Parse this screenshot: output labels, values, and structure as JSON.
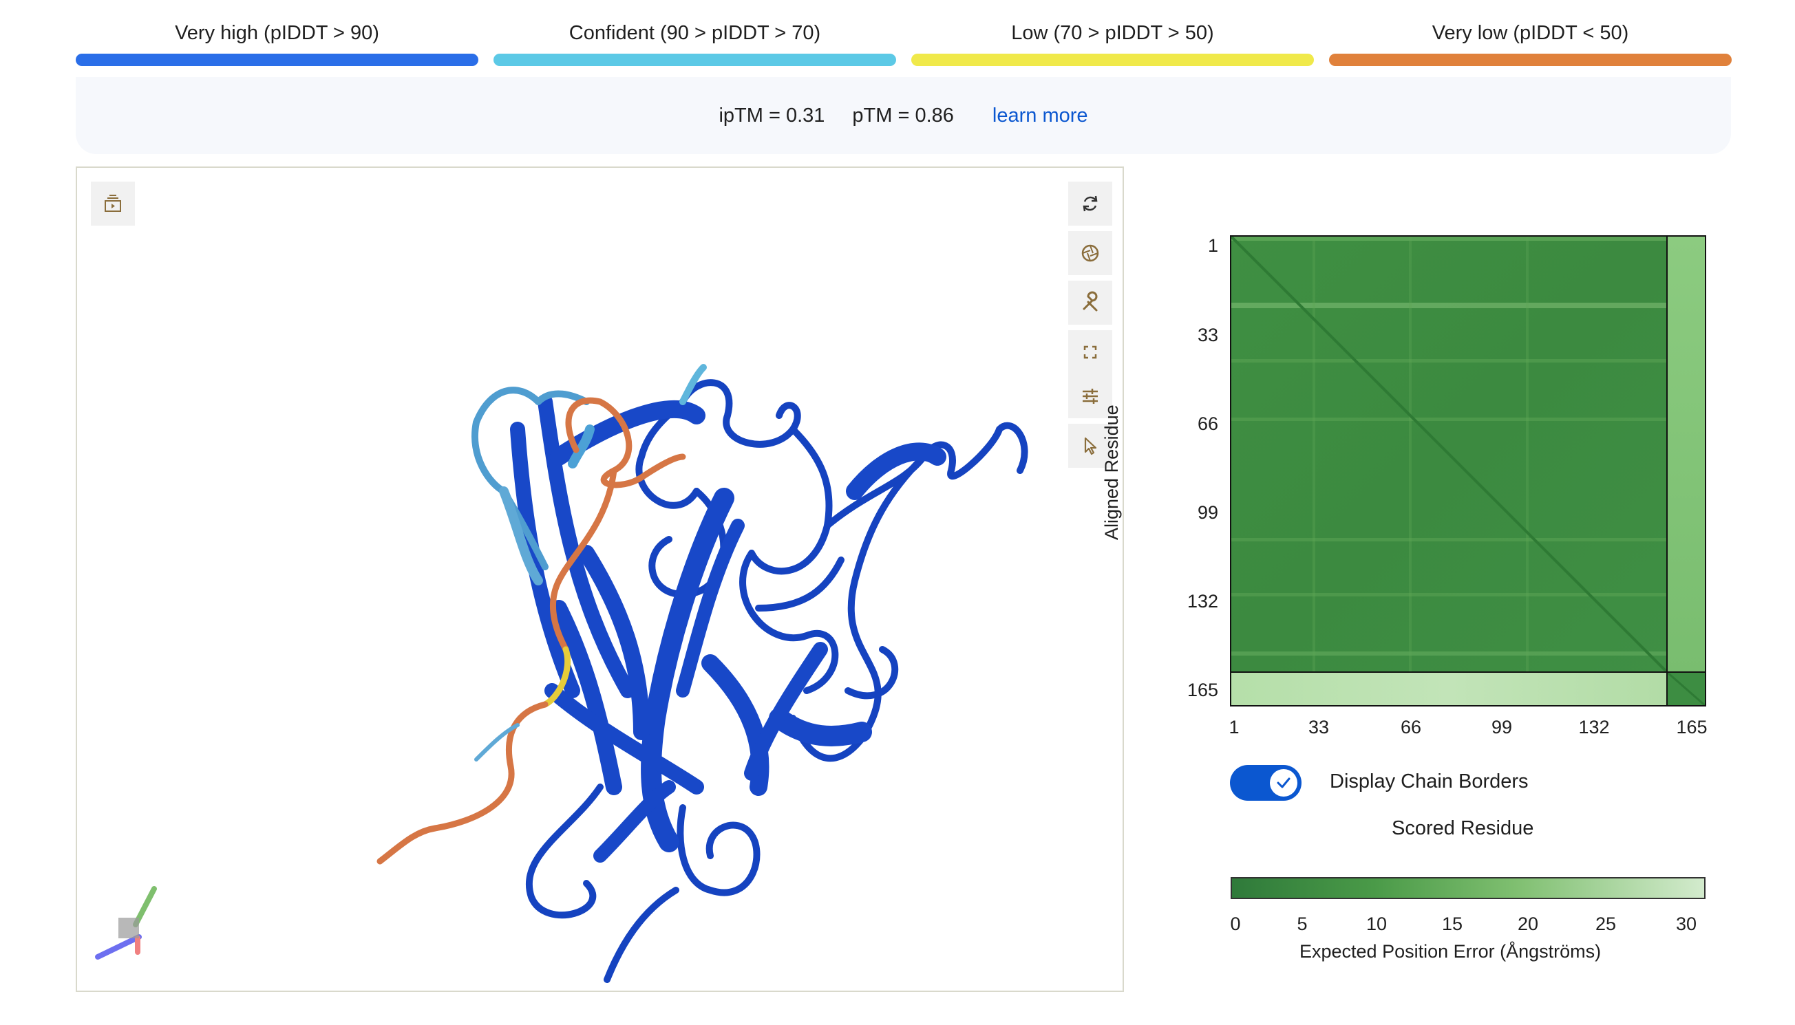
{
  "legend": [
    {
      "label": "Very high (pIDDT > 90)",
      "color": "#2a6ee8"
    },
    {
      "label": "Confident (90 > pIDDT > 70)",
      "color": "#5cc9e6"
    },
    {
      "label": "Low (70 > pIDDT > 50)",
      "color": "#f0e94a"
    },
    {
      "label": "Very low (pIDDT < 50)",
      "color": "#e0813b"
    }
  ],
  "scores": {
    "iptm": "ipTM = 0.31",
    "ptm": "pTM = 0.86",
    "learn_more": "learn more"
  },
  "viewer": {
    "toolbar_left": [
      {
        "icon": "animation-icon"
      }
    ],
    "toolbar_right": [
      {
        "icon": "rotate-icon"
      },
      {
        "icon": "camera-shutter-icon"
      },
      {
        "icon": "wrench-icon"
      },
      {
        "icon": "fullscreen-icon"
      },
      {
        "icon": "sliders-icon"
      },
      {
        "icon": "pointer-icon"
      }
    ]
  },
  "pae": {
    "y_axis_label": "Aligned Residue",
    "y_ticks": [
      "1",
      "33",
      "66",
      "99",
      "132",
      "165"
    ],
    "x_ticks": [
      "1",
      "33",
      "66",
      "99",
      "132",
      "165"
    ],
    "toggle_label": "Display Chain Borders",
    "toggle_on": true,
    "x_axis_label": "Scored Residue",
    "colorbar_ticks": [
      "0",
      "5",
      "10",
      "15",
      "20",
      "25",
      "30"
    ],
    "colorbar_label": "Expected Position Error (Ångströms)",
    "colors": {
      "low_error": "#2f7a3a",
      "high_error": "#d3ebcd"
    }
  }
}
